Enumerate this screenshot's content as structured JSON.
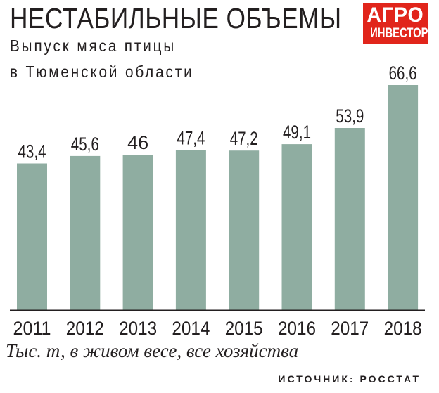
{
  "header": {
    "title": "НЕСТАБИЛЬНЫЕ ОБЪЕМЫ",
    "subtitle_line1": "Выпуск мяса птицы",
    "subtitle_line2": "в Тюменской области"
  },
  "logo": {
    "line1": "АГРО",
    "line2": "ИНВЕСТОР",
    "color": "#e1251b"
  },
  "footer": {
    "units": "Тыс. т, в живом весе, все хозяйства",
    "source": "ИСТОЧНИК: РОССТАТ"
  },
  "colors": {
    "bar": "#8fada1",
    "text": "#231f20",
    "axis": "#231f20"
  },
  "chart_data": {
    "type": "bar",
    "categories": [
      "2011",
      "2012",
      "2013",
      "2014",
      "2015",
      "2016",
      "2017",
      "2018"
    ],
    "values": [
      43.4,
      45.6,
      46,
      47.4,
      47.2,
      49.1,
      53.9,
      66.6
    ],
    "value_labels": [
      "43,4",
      "45,6",
      "46",
      "47,4",
      "47,2",
      "49,1",
      "53,9",
      "66,6"
    ],
    "title": "НЕСТАБИЛЬНЫЕ ОБЪЕМЫ",
    "subtitle": "Выпуск мяса птицы в Тюменской области",
    "xlabel": "",
    "ylabel": "",
    "ylim": [
      0,
      66.6
    ],
    "grid": false,
    "legend": "none"
  }
}
